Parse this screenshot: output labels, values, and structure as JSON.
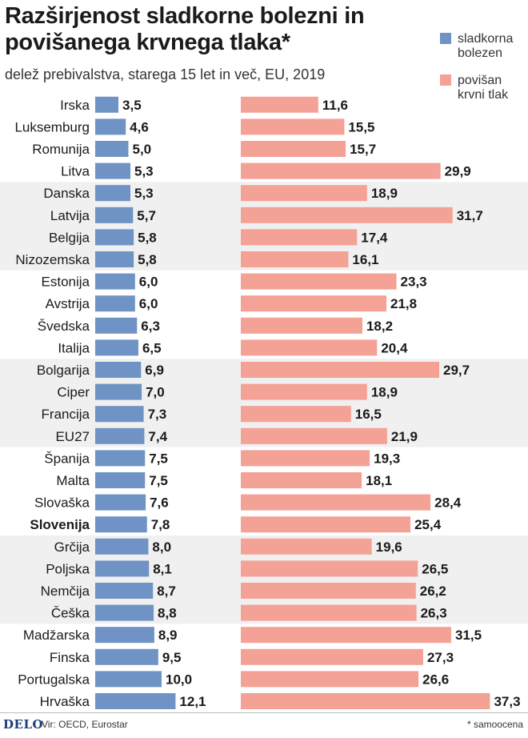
{
  "chart_data": {
    "type": "bar",
    "title": "Razširjenost sladkorne bolezni in povišanega krvnega tlaka*",
    "subtitle": "delež prebivalstva, starega 15 let in več, EU, 2019",
    "legend": [
      {
        "name": "sladkorna bolezen",
        "lines": [
          "sladkorna",
          "bolezen"
        ],
        "color": "#6f93c4"
      },
      {
        "name": "povišan krvni tlak",
        "lines": [
          "povišan",
          "krvni tlak"
        ],
        "color": "#f4a196"
      }
    ],
    "categories": [
      "Irska",
      "Luksemburg",
      "Romunija",
      "Litva",
      "Danska",
      "Latvija",
      "Belgija",
      "Nizozemska",
      "Estonija",
      "Avstrija",
      "Švedska",
      "Italija",
      "Bolgarija",
      "Ciper",
      "Francija",
      "EU27",
      "Španija",
      "Malta",
      "Slovaška",
      "Slovenija",
      "Grčija",
      "Poljska",
      "Nemčija",
      "Češka",
      "Madžarska",
      "Finska",
      "Portugalska",
      "Hrvaška"
    ],
    "highlight": "Slovenija",
    "series": [
      {
        "name": "sladkorna bolezen",
        "values": [
          3.5,
          4.6,
          5.0,
          5.3,
          5.3,
          5.7,
          5.8,
          5.8,
          6.0,
          6.0,
          6.3,
          6.5,
          6.9,
          7.0,
          7.3,
          7.4,
          7.5,
          7.5,
          7.6,
          7.8,
          8.0,
          8.1,
          8.7,
          8.8,
          8.9,
          9.5,
          10.0,
          12.1
        ]
      },
      {
        "name": "povišan krvni tlak",
        "values": [
          11.6,
          15.5,
          15.7,
          29.9,
          18.9,
          31.7,
          17.4,
          16.1,
          23.3,
          21.8,
          18.2,
          20.4,
          29.7,
          18.9,
          16.5,
          21.9,
          19.3,
          18.1,
          28.4,
          25.4,
          19.6,
          26.5,
          26.2,
          26.3,
          31.5,
          27.3,
          26.6,
          37.3
        ]
      }
    ],
    "decimal_separator": ",",
    "band_color": "#f0f0f0",
    "bands_in_groups_of": 4
  },
  "footer": {
    "logo": "DELO",
    "source": "Vir: OECD, Eurostar",
    "note": "* samoocena"
  }
}
